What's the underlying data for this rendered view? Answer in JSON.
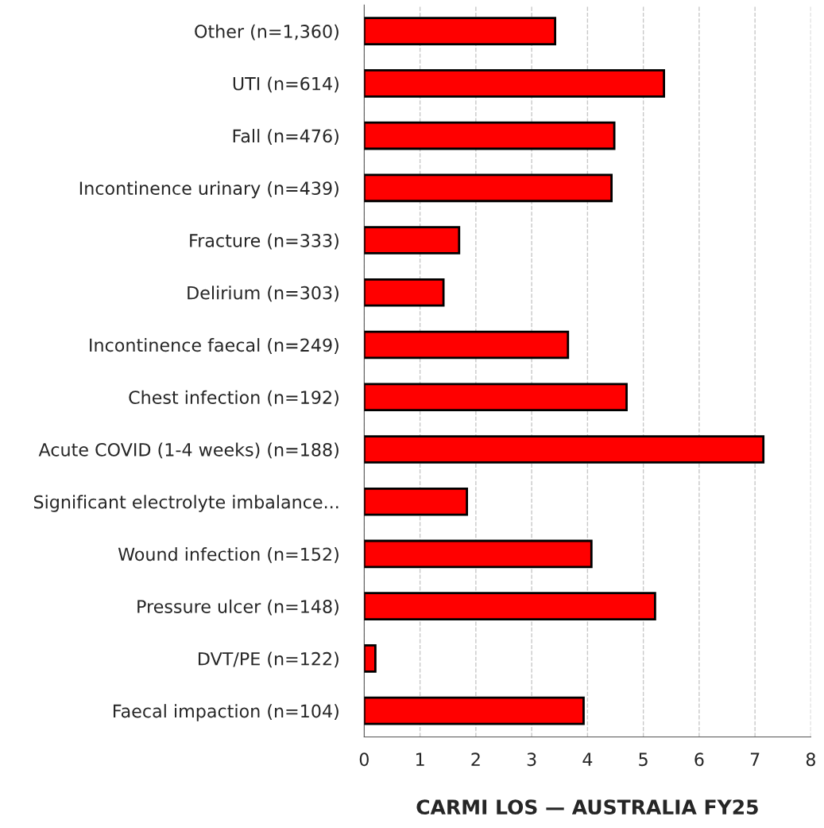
{
  "chart_data": {
    "type": "bar",
    "orientation": "horizontal",
    "xlabel": "CARMI LOS — AUSTRALIA FY25",
    "categories": [
      "Other (n=1,360)",
      "UTI (n=614)",
      "Fall (n=476)",
      "Incontinence urinary (n=439)",
      "Fracture (n=333)",
      "Delirium (n=303)",
      "Incontinence faecal (n=249)",
      "Chest infection (n=192)",
      "Acute COVID (1-4 weeks) (n=188)",
      "Significant electrolyte imbalance...",
      "Wound infection (n=152)",
      "Pressure ulcer (n=148)",
      "DVT/PE (n=122)",
      "Faecal impaction (n=104)"
    ],
    "values": [
      3.42,
      5.37,
      4.48,
      4.43,
      1.7,
      1.42,
      3.65,
      4.7,
      7.15,
      1.84,
      4.07,
      5.21,
      0.2,
      3.93
    ],
    "color": "#ff0000",
    "xlim": [
      0,
      8
    ],
    "xticks": [
      0,
      1,
      2,
      3,
      4,
      5,
      6,
      7,
      8
    ],
    "grid": "x"
  }
}
